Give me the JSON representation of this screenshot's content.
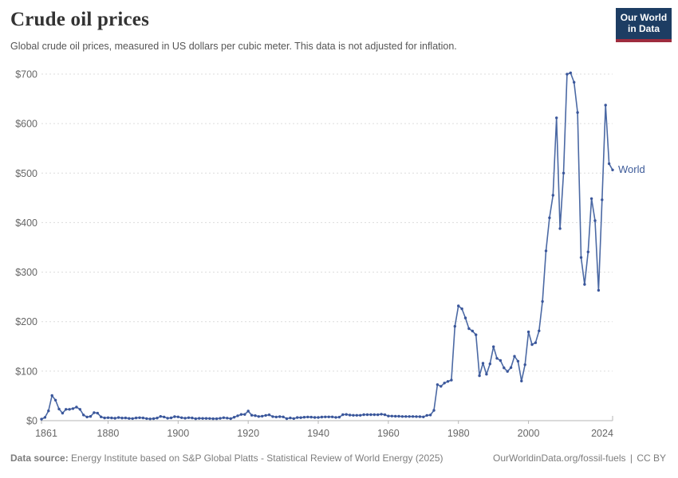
{
  "header": {
    "title": "Crude oil prices",
    "subtitle": "Global crude oil prices, measured in US dollars per cubic meter. This data is not adjusted for inflation."
  },
  "logo": {
    "line1": "Our World",
    "line2": "in Data"
  },
  "chart_data": {
    "type": "line",
    "title": "Crude oil prices",
    "ylabel": "US dollars per cubic meter",
    "xlim": [
      1861,
      2024
    ],
    "ylim": [
      0,
      700
    ],
    "grid": "horizontal-dashed",
    "y_ticks": [
      0,
      100,
      200,
      300,
      400,
      500,
      600,
      700
    ],
    "y_tick_prefix": "$",
    "x_ticks": [
      1861,
      1880,
      1900,
      1920,
      1940,
      1960,
      1980,
      2000,
      2024
    ],
    "x_interval": "annual",
    "x_start_year": 1861,
    "x_end_year": 2024,
    "series": [
      {
        "name": "World",
        "values": [
          3.1,
          6.6,
          19.8,
          50.7,
          41.4,
          23.5,
          15.2,
          22.8,
          22.9,
          24.3,
          27.3,
          22.9,
          11.5,
          7.4,
          8.5,
          16.1,
          15.2,
          7.5,
          5.4,
          6.0,
          5.4,
          4.9,
          6.3,
          5.3,
          5.5,
          4.5,
          4.2,
          5.5,
          5.9,
          5.5,
          4.2,
          3.5,
          4.0,
          5.3,
          8.6,
          7.4,
          5.0,
          5.7,
          8.1,
          7.5,
          6.0,
          5.0,
          5.9,
          5.4,
          3.9,
          4.6,
          4.5,
          4.5,
          4.4,
          3.8,
          3.8,
          4.7,
          6.0,
          5.1,
          4.0,
          6.9,
          9.8,
          12.5,
          12.6,
          19.3,
          10.9,
          10.1,
          8.4,
          9.0,
          10.6,
          11.8,
          8.2,
          7.4,
          8.0,
          7.5,
          4.1,
          5.5,
          4.2,
          6.3,
          6.1,
          6.9,
          7.4,
          7.1,
          6.4,
          6.4,
          7.2,
          7.5,
          7.5,
          7.6,
          6.6,
          7.0,
          12.0,
          12.5,
          11.2,
          10.8,
          10.8,
          10.8,
          12.1,
          12.1,
          12.1,
          12.1,
          11.9,
          13.1,
          11.9,
          9.4,
          9.1,
          8.9,
          8.8,
          8.4,
          8.4,
          8.4,
          8.4,
          8.2,
          8.1,
          7.6,
          10.6,
          11.4,
          20.7,
          72.8,
          69.4,
          75.9,
          79.2,
          81.9,
          190.5,
          231.7,
          226.0,
          207.4,
          185.9,
          181.0,
          173.4,
          90.8,
          116.0,
          93.8,
          114.7,
          149.3,
          125.8,
          121.5,
          106.7,
          99.5,
          107.1,
          130.0,
          120.1,
          80.0,
          113.0,
          179.3,
          153.7,
          157.4,
          181.3,
          240.7,
          342.9,
          409.7,
          455.3,
          611.7,
          387.9,
          500.0,
          699.8,
          702.4,
          683.4,
          622.4,
          329.5,
          275.1,
          340.9,
          448.5,
          403.9,
          263.2,
          446.0,
          637.3,
          518.9,
          506.4
        ]
      }
    ]
  },
  "footer": {
    "source_label": "Data source:",
    "source_text": "Energy Institute based on S&P Global Platts - Statistical Review of World Energy (2025)",
    "site": "OurWorldinData.org/fossil-fuels",
    "separator": "|",
    "license": "CC BY"
  },
  "colors": {
    "line": "#4b69a4",
    "marker": "#3a569b",
    "entity_label": "#3d5b99",
    "grid": "#dcdcdc",
    "axis": "#b6b6b6",
    "tick_label": "#666666",
    "title": "#333333",
    "subtitle": "#555555",
    "footer": "#7d7d7d",
    "logo_bg": "#1d3d63",
    "logo_stripe": "#9e2c3e",
    "background": "#ffffff"
  }
}
